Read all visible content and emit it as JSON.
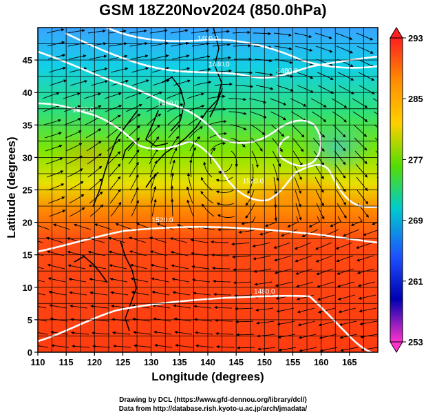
{
  "title": "GSM 18Z20Nov2024 (850.0hPa)",
  "xlabel": "Longitude (degrees)",
  "ylabel": "Latitude  (degrees)",
  "credits": [
    "Drawing by DCL (https://www.gfd-dennou.org/library/dcl/)",
    "Data from http://database.rish.kyoto-u.ac.jp/arch/jmadata/"
  ],
  "map": {
    "lon_range": [
      110,
      170
    ],
    "lat_range": [
      0,
      50
    ],
    "lon_ticks": [
      "110",
      "115",
      "120",
      "125",
      "130",
      "135",
      "140",
      "145",
      "150",
      "155",
      "160",
      "165"
    ],
    "lat_ticks": [
      "0",
      "5",
      "10",
      "15",
      "20",
      "25",
      "30",
      "35",
      "40",
      "45"
    ],
    "gridlines": true,
    "coastlines": true,
    "streamlines": true
  },
  "colorbar": {
    "ticks": [
      "293",
      "285",
      "277",
      "269",
      "261",
      "253"
    ],
    "values": [
      293,
      285,
      277,
      269,
      261,
      253
    ],
    "range": [
      253,
      293
    ],
    "colors": [
      "#ff2020",
      "#ff8c00",
      "#ffd000",
      "#55dd00",
      "#00cccc",
      "#1e50ff",
      "#0000b0",
      "#ff33cc"
    ]
  },
  "contours": [
    {
      "label": "1400.0",
      "lon": 140,
      "lat": 48
    },
    {
      "label": "1440.0",
      "lon": 142,
      "lat": 44
    },
    {
      "label": "1480.0",
      "lon": 154,
      "lat": 43
    },
    {
      "label": "1460.0",
      "lon": 133,
      "lat": 38
    },
    {
      "label": "1500.0",
      "lon": 118,
      "lat": 37
    },
    {
      "label": "1520.0",
      "lon": 132,
      "lat": 20
    },
    {
      "label": "1520.0",
      "lon": 148,
      "lat": 26
    },
    {
      "label": "1480.0",
      "lon": 150,
      "lat": 9
    }
  ]
}
